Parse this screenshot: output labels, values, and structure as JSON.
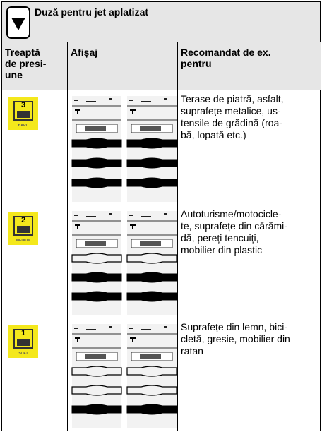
{
  "header": {
    "title": "Duză pentru jet aplatizat"
  },
  "table": {
    "columns": [
      [
        "Treaptă",
        "de presi-",
        "une"
      ],
      [
        "Afișaj"
      ],
      [
        "Recomandat de ex.",
        "pentru"
      ]
    ],
    "rows": [
      {
        "level": "3",
        "level_label": "HARD",
        "text": [
          "Terase de piatră, asfalt,",
          "suprafețe metalice, us-",
          "tensile de grădină (roa-",
          "bă, lopată etc.)"
        ]
      },
      {
        "level": "2",
        "level_label": "MEDIUM",
        "text": [
          "Autoturisme/motocicle-",
          "te, suprafețe din cărămi-",
          "dă, pereți tencuiți,",
          "mobilier din plastic"
        ]
      },
      {
        "level": "1",
        "level_label": "SOFT",
        "text": [
          "Suprafețe din lemn, bici-",
          "cletă, gresie, mobilier din",
          "ratan"
        ]
      }
    ]
  }
}
